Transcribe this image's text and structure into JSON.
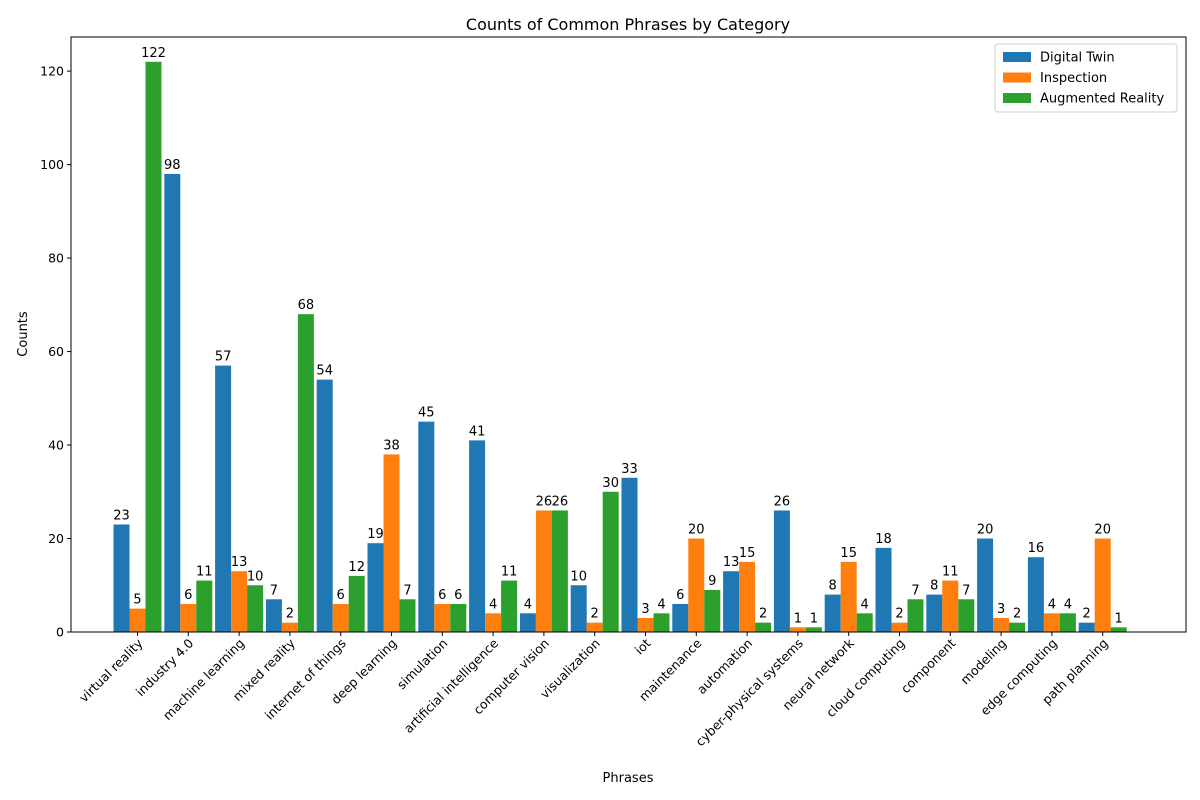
{
  "chart_data": {
    "type": "bar",
    "title": "Counts of Common Phrases by Category",
    "xlabel": "Phrases",
    "ylabel": "Counts",
    "ylim": [
      0,
      127.3
    ],
    "yticks": [
      0,
      20,
      40,
      60,
      80,
      100,
      120
    ],
    "legend_position": "top-right",
    "grid": false,
    "categories": [
      "virtual reality",
      "industry 4.0",
      "machine learning",
      "mixed reality",
      "internet of things",
      "deep learning",
      "simulation",
      "artificial intelligence",
      "computer vision",
      "visualization",
      "iot",
      "maintenance",
      "automation",
      "cyber-physical systems",
      "neural network",
      "cloud computing",
      "component",
      "modeling",
      "edge computing",
      "path planning"
    ],
    "series": [
      {
        "name": "Digital Twin",
        "color": "#1f77b4",
        "values": [
          23,
          98,
          57,
          7,
          54,
          19,
          45,
          41,
          4,
          10,
          33,
          6,
          13,
          26,
          8,
          18,
          8,
          20,
          16,
          2
        ]
      },
      {
        "name": "Inspection",
        "color": "#ff7f0e",
        "values": [
          5,
          6,
          13,
          2,
          6,
          38,
          6,
          4,
          26,
          2,
          3,
          20,
          15,
          1,
          15,
          2,
          11,
          3,
          4,
          20
        ]
      },
      {
        "name": "Augmented Reality",
        "color": "#2ca02c",
        "values": [
          122,
          11,
          10,
          68,
          12,
          7,
          6,
          11,
          26,
          30,
          4,
          9,
          2,
          1,
          4,
          7,
          7,
          2,
          4,
          1
        ]
      }
    ]
  }
}
